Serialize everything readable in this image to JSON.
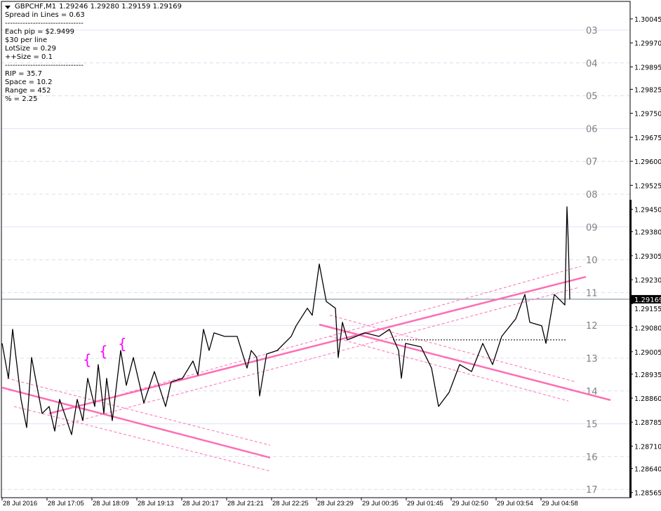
{
  "header": {
    "symbol": "GBPCHF,M1",
    "ohlc": "1.29246 1.29280 1.29159 1.29169"
  },
  "info_lines": [
    "Spread in Lines = 0.63",
    "-------------------------------",
    "Each pip = $2.9499",
    "$30 per line",
    "LotSize = 0.29",
    "++Size = 0.1",
    "-------------------------------",
    "RIP = 35.7",
    "Space = 10.2",
    "Range = 452",
    "% = 2.25"
  ],
  "colors": {
    "price_line": "#000000",
    "trend_line": "#ff6eb4",
    "brace": "#ff00ff",
    "grid_solid": "#e2e2f6",
    "grid_dashed": "#dcdcf0",
    "level_label": "#808080",
    "current_price_line": "#708090"
  },
  "chart_data": {
    "type": "line",
    "symbol": "GBPCHF",
    "timeframe": "M1",
    "ylim": [
      1.28549,
      1.30104
    ],
    "y_ticks": [
      "1.30045",
      "1.29970",
      "1.29895",
      "1.29825",
      "1.29750",
      "1.29675",
      "1.29600",
      "1.29525",
      "1.29450",
      "1.29380",
      "1.29305",
      "1.29230",
      "1.29155",
      "1.29080",
      "1.29005",
      "1.28935",
      "1.28860",
      "1.28785",
      "1.28710",
      "1.28640",
      "1.28565"
    ],
    "x_ticks": [
      "28 Jul 2016",
      "28 Jul 17:05",
      "28 Jul 18:09",
      "28 Jul 19:13",
      "28 Jul 20:17",
      "28 Jul 21:21",
      "28 Jul 22:25",
      "28 Jul 23:29",
      "29 Jul 00:35",
      "29 Jul 01:45",
      "29 Jul 02:50",
      "29 Jul 03:54",
      "29 Jul 04:58"
    ],
    "current_price": "1.29169",
    "level_labels": [
      "03",
      "04",
      "05",
      "06",
      "07",
      "08",
      "09",
      "10",
      "11",
      "12",
      "13",
      "14",
      "15",
      "16",
      "17"
    ],
    "series": [
      {
        "points": [
          [
            "28 Jul 15:38",
            1.29031
          ],
          [
            "28 Jul 15:47",
            1.28922
          ],
          [
            "28 Jul 15:53",
            1.29075
          ],
          [
            "28 Jul 16:05",
            1.28856
          ],
          [
            "28 Jul 16:13",
            1.28768
          ],
          [
            "28 Jul 16:20",
            1.28987
          ],
          [
            "28 Jul 16:35",
            1.28812
          ],
          [
            "28 Jul 16:45",
            1.28834
          ],
          [
            "28 Jul 16:53",
            1.28757
          ],
          [
            "28 Jul 17:00",
            1.28856
          ],
          [
            "28 Jul 17:17",
            1.28746
          ],
          [
            "28 Jul 17:25",
            1.28856
          ],
          [
            "28 Jul 17:33",
            1.2879
          ],
          [
            "28 Jul 17:40",
            1.28922
          ],
          [
            "28 Jul 17:50",
            1.28834
          ],
          [
            "28 Jul 17:55",
            1.28965
          ],
          [
            "28 Jul 18:03",
            1.28812
          ],
          [
            "28 Jul 18:07",
            1.28922
          ],
          [
            "28 Jul 18:15",
            1.2879
          ],
          [
            "28 Jul 18:27",
            1.29009
          ],
          [
            "28 Jul 18:35",
            1.289
          ],
          [
            "28 Jul 18:45",
            1.28987
          ],
          [
            "28 Jul 19:00",
            1.28845
          ],
          [
            "28 Jul 19:15",
            1.28943
          ],
          [
            "28 Jul 19:31",
            1.28834
          ],
          [
            "28 Jul 19:39",
            1.28911
          ],
          [
            "28 Jul 19:55",
            1.28922
          ],
          [
            "28 Jul 20:10",
            1.28976
          ],
          [
            "28 Jul 20:17",
            1.28932
          ],
          [
            "28 Jul 20:25",
            1.29075
          ],
          [
            "28 Jul 20:33",
            1.29009
          ],
          [
            "28 Jul 20:40",
            1.29064
          ],
          [
            "28 Jul 20:55",
            1.29053
          ],
          [
            "28 Jul 21:13",
            1.29053
          ],
          [
            "28 Jul 21:27",
            1.28954
          ],
          [
            "28 Jul 21:33",
            1.29009
          ],
          [
            "28 Jul 21:41",
            1.28987
          ],
          [
            "28 Jul 21:45",
            1.28867
          ],
          [
            "28 Jul 21:55",
            1.28998
          ],
          [
            "28 Jul 22:10",
            1.29009
          ],
          [
            "28 Jul 22:30",
            1.29053
          ],
          [
            "28 Jul 22:37",
            1.29086
          ],
          [
            "28 Jul 22:53",
            1.29141
          ],
          [
            "28 Jul 23:00",
            1.29119
          ],
          [
            "28 Jul 23:10",
            1.29279
          ],
          [
            "28 Jul 23:20",
            1.29162
          ],
          [
            "28 Jul 23:33",
            1.29141
          ],
          [
            "28 Jul 23:37",
            1.28987
          ],
          [
            "28 Jul 23:43",
            1.29097
          ],
          [
            "28 Jul 23:50",
            1.29042
          ],
          [
            "29 Jul 00:15",
            1.29064
          ],
          [
            "29 Jul 00:35",
            1.29053
          ],
          [
            "29 Jul 00:50",
            1.29075
          ],
          [
            "29 Jul 01:03",
            1.29009
          ],
          [
            "29 Jul 01:07",
            1.28922
          ],
          [
            "29 Jul 01:13",
            1.29031
          ],
          [
            "29 Jul 01:35",
            1.2902
          ],
          [
            "29 Jul 01:50",
            1.28954
          ],
          [
            "29 Jul 02:00",
            1.28834
          ],
          [
            "29 Jul 02:15",
            1.28878
          ],
          [
            "29 Jul 02:30",
            1.28965
          ],
          [
            "29 Jul 02:47",
            1.28943
          ],
          [
            "29 Jul 03:03",
            1.29031
          ],
          [
            "29 Jul 03:17",
            1.28965
          ],
          [
            "29 Jul 03:30",
            1.29053
          ],
          [
            "29 Jul 03:50",
            1.29108
          ],
          [
            "29 Jul 04:03",
            1.29184
          ],
          [
            "29 Jul 04:10",
            1.29097
          ],
          [
            "29 Jul 04:27",
            1.29086
          ],
          [
            "29 Jul 04:33",
            1.29031
          ],
          [
            "29 Jul 04:45",
            1.29184
          ],
          [
            "29 Jul 05:00",
            1.29151
          ],
          [
            "29 Jul 05:03",
            1.29458
          ],
          [
            "29 Jul 05:05",
            1.29338
          ],
          [
            "29 Jul 05:07",
            1.29169
          ]
        ]
      }
    ],
    "trend_lines": [
      {
        "style": "solid",
        "from": [
          "28 Jul 16:45",
          1.28812
        ],
        "to": [
          "29 Jul 05:30",
          1.29239
        ]
      },
      {
        "style": "dashed",
        "from": [
          "28 Jul 18:20",
          1.28867
        ],
        "to": [
          "29 Jul 05:23",
          1.29272
        ]
      },
      {
        "style": "dashed",
        "from": [
          "28 Jul 16:50",
          1.28768
        ],
        "to": [
          "29 Jul 05:20",
          1.29206
        ]
      },
      {
        "style": "solid",
        "from": [
          "28 Jul 15:38",
          1.28893
        ],
        "to": [
          "28 Jul 22:00",
          1.28674
        ]
      },
      {
        "style": "dashed",
        "from": [
          "28 Jul 15:45",
          1.28922
        ],
        "to": [
          "28 Jul 22:00",
          1.28713
        ]
      },
      {
        "style": "dashed",
        "from": [
          "28 Jul 15:55",
          1.28834
        ],
        "to": [
          "28 Jul 22:00",
          1.28632
        ]
      },
      {
        "style": "solid",
        "from": [
          "28 Jul 23:10",
          1.2909
        ],
        "to": [
          "29 Jul 06:05",
          1.28854
        ]
      },
      {
        "style": "dashed",
        "from": [
          "28 Jul 23:25",
          1.29119
        ],
        "to": [
          "29 Jul 05:15",
          1.28911
        ]
      },
      {
        "style": "dashed",
        "from": [
          "28 Jul 23:25",
          1.29053
        ],
        "to": [
          "29 Jul 05:05",
          1.28851
        ]
      }
    ],
    "dotted_level": {
      "price": 1.29042,
      "from": "29 Jul 00:55",
      "to": "29 Jul 05:03"
    },
    "braces": [
      {
        "label": "{",
        "at": [
          "28 Jul 17:33",
          1.28965
        ]
      },
      {
        "label": "{",
        "at": [
          "28 Jul 17:56",
          1.28991
        ]
      },
      {
        "label": "{",
        "at": [
          "28 Jul 18:23",
          1.29014
        ]
      }
    ]
  }
}
